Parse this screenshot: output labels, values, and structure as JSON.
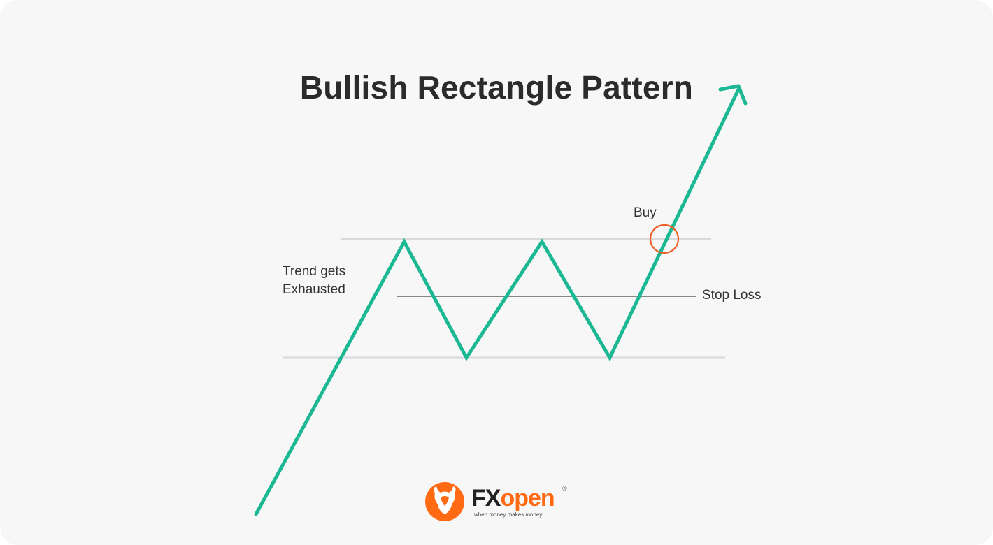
{
  "title": "Bullish Rectangle Pattern",
  "labels": {
    "trend": "Trend gets Exhausted",
    "buy": "Buy",
    "stop_loss": "Stop Loss"
  },
  "logo": {
    "icon": "bull-head-icon",
    "brand_dark": "FX",
    "brand_accent": "open",
    "registered": "®",
    "tagline": "when money makes money"
  },
  "colors": {
    "background": "#f7f7f8",
    "price_line": "#1bb893",
    "range_lines": "#d9d9dc",
    "stop_loss_line": "#444444",
    "buy_marker": "#ee5a1f",
    "brand_accent": "#ff6a13"
  }
}
